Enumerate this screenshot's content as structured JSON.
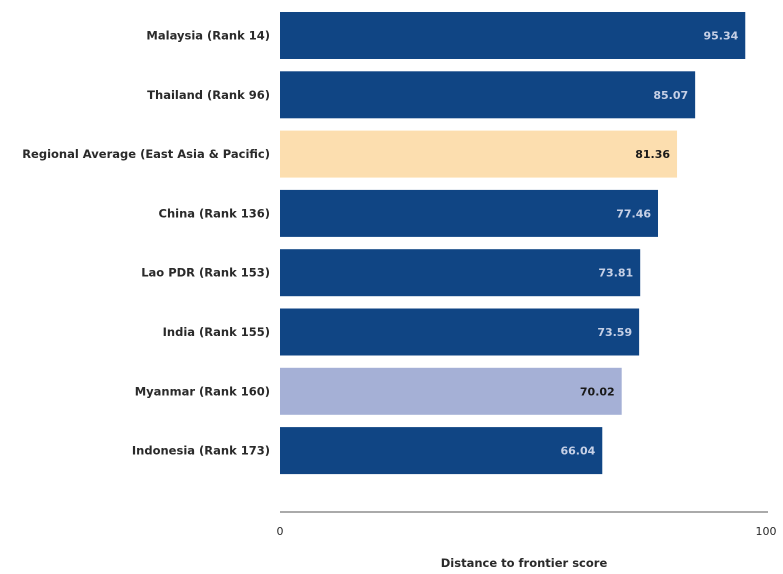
{
  "chart_data": {
    "type": "bar",
    "orientation": "horizontal",
    "categories": [
      "Malaysia (Rank 14)",
      "Thailand (Rank 96)",
      "Regional Average (East Asia & Pacific)",
      "China (Rank 136)",
      "Lao PDR (Rank 153)",
      "India (Rank 155)",
      "Myanmar (Rank 160)",
      "Indonesia (Rank 173)"
    ],
    "values": [
      95.34,
      85.07,
      81.36,
      77.46,
      73.81,
      73.59,
      70.02,
      66.04
    ],
    "value_labels": [
      "95.34",
      "85.07",
      "81.36",
      "77.46",
      "73.81",
      "73.59",
      "70.02",
      "66.04"
    ],
    "bar_colors": [
      "#104584",
      "#104584",
      "#fcdeaf",
      "#104584",
      "#104584",
      "#104584",
      "#a5b0d6",
      "#104584"
    ],
    "label_colors": [
      "#c6d0e6",
      "#c6d0e6",
      "#1a1a1a",
      "#c6d0e6",
      "#c6d0e6",
      "#c6d0e6",
      "#1a1a1a",
      "#c6d0e6"
    ],
    "xlim": [
      0,
      100
    ],
    "x_ticks": [
      "0",
      "100"
    ],
    "xlabel": "Distance to frontier score",
    "grid": false,
    "title": ""
  }
}
